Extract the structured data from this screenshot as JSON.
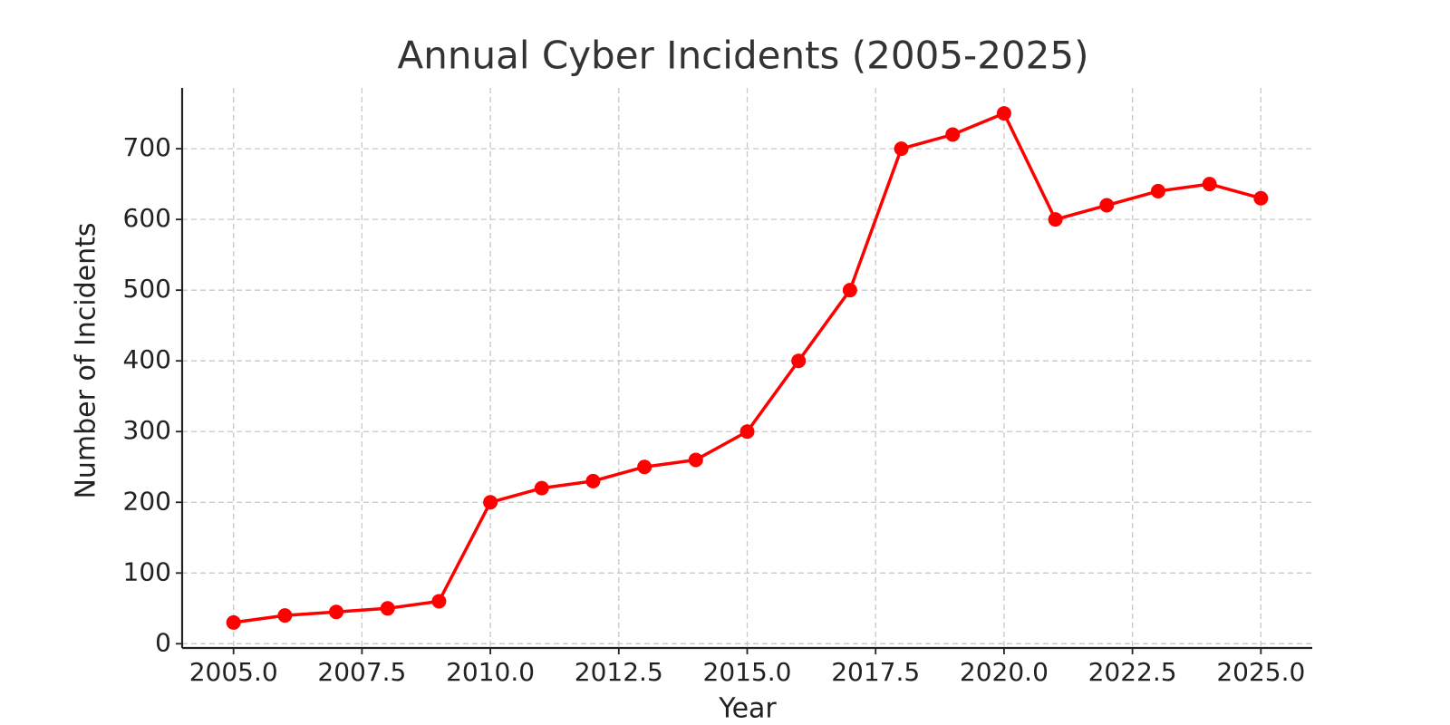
{
  "chart_data": {
    "type": "line",
    "title": "Annual Cyber Incidents (2005-2025)",
    "x_label": "Year",
    "y_label": "Number of Incidents",
    "x": [
      2005,
      2006,
      2007,
      2008,
      2009,
      2010,
      2011,
      2012,
      2013,
      2014,
      2015,
      2016,
      2017,
      2018,
      2019,
      2020,
      2021,
      2022,
      2023,
      2024,
      2025
    ],
    "values": [
      30,
      40,
      45,
      50,
      60,
      200,
      220,
      230,
      250,
      260,
      300,
      400,
      500,
      700,
      720,
      750,
      600,
      620,
      640,
      650,
      630
    ],
    "color": "#ff0000",
    "xlim": [
      2004,
      2026
    ],
    "xticks": [
      {
        "value": 2005,
        "label": "2005.0"
      },
      {
        "value": 2007.5,
        "label": "2007.5"
      },
      {
        "value": 2010,
        "label": "2010.0"
      },
      {
        "value": 2012.5,
        "label": "2012.5"
      },
      {
        "value": 2015,
        "label": "2015.0"
      },
      {
        "value": 2017.5,
        "label": "2017.5"
      },
      {
        "value": 2020,
        "label": "2020.0"
      },
      {
        "value": 2022.5,
        "label": "2022.5"
      },
      {
        "value": 2025,
        "label": "2025.0"
      }
    ],
    "ylim": [
      -6,
      786
    ],
    "yticks": [
      0,
      100,
      200,
      300,
      400,
      500,
      600,
      700
    ],
    "grid": true
  }
}
